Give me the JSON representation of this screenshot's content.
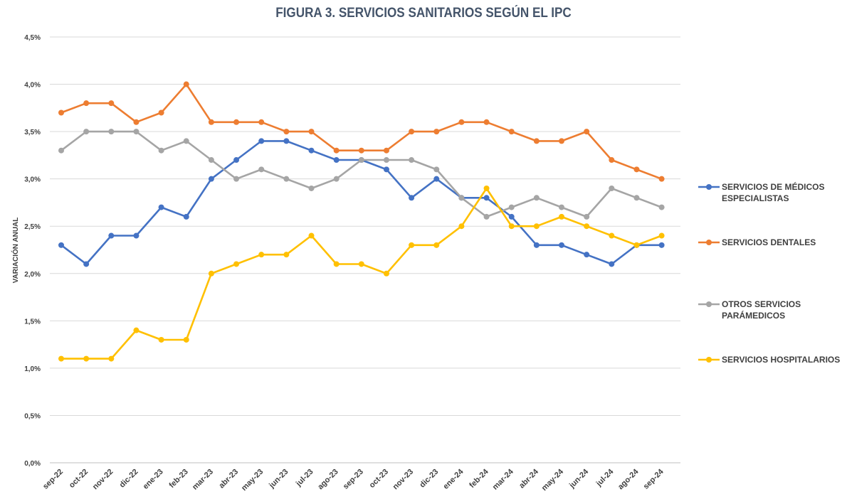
{
  "chart_data": {
    "type": "line",
    "title": "FIGURA 3. SERVICIOS SANITARIOS SEGÚN EL IPC",
    "ylabel": "VARIACIÓN ANUAL",
    "xlabel": "",
    "ylim": [
      0,
      4.5
    ],
    "y_ticks": [
      {
        "value": 0.0,
        "label": "0,0%"
      },
      {
        "value": 0.5,
        "label": "0,5%"
      },
      {
        "value": 1.0,
        "label": "1,0%"
      },
      {
        "value": 1.5,
        "label": "1,5%"
      },
      {
        "value": 2.0,
        "label": "2,0%"
      },
      {
        "value": 2.5,
        "label": "2,5%"
      },
      {
        "value": 3.0,
        "label": "3,0%"
      },
      {
        "value": 3.5,
        "label": "3,5%"
      },
      {
        "value": 4.0,
        "label": "4,0%"
      },
      {
        "value": 4.5,
        "label": "4,5%"
      }
    ],
    "categories": [
      "sep-22",
      "oct-22",
      "nov-22",
      "dic-22",
      "ene-23",
      "feb-23",
      "mar-23",
      "abr-23",
      "may-23",
      "jun-23",
      "jul-23",
      "ago-23",
      "sep-23",
      "oct-23",
      "nov-23",
      "dic-23",
      "ene-24",
      "feb-24",
      "mar-24",
      "abr-24",
      "may-24",
      "jun-24",
      "jul-24",
      "ago-24",
      "sep-24"
    ],
    "grid": true,
    "legend_position": "right",
    "series": [
      {
        "name": "SERVICIOS DE MÉDICOS ESPECIALISTAS",
        "legend_lines": [
          "SERVICIOS DE MÉDICOS",
          "ESPECIALISTAS"
        ],
        "color": "#4472c4",
        "values": [
          2.3,
          2.1,
          2.4,
          2.4,
          2.7,
          2.6,
          3.0,
          3.2,
          3.4,
          3.4,
          3.3,
          3.2,
          3.2,
          3.1,
          2.8,
          3.0,
          2.8,
          2.8,
          2.6,
          2.3,
          2.3,
          2.2,
          2.1,
          2.3,
          2.3
        ]
      },
      {
        "name": "SERVICIOS DENTALES",
        "legend_lines": [
          "SERVICIOS DENTALES"
        ],
        "color": "#ed7d31",
        "values": [
          3.7,
          3.8,
          3.8,
          3.6,
          3.7,
          4.0,
          3.6,
          3.6,
          3.6,
          3.5,
          3.5,
          3.3,
          3.3,
          3.3,
          3.5,
          3.5,
          3.6,
          3.6,
          3.5,
          3.4,
          3.4,
          3.5,
          3.2,
          3.1,
          3.0
        ]
      },
      {
        "name": "OTROS SERVICIOS PARÁMEDICOS",
        "legend_lines": [
          "OTROS SERVICIOS",
          "PARÁMEDICOS"
        ],
        "color": "#a5a5a5",
        "values": [
          3.3,
          3.5,
          3.5,
          3.5,
          3.3,
          3.4,
          3.2,
          3.0,
          3.1,
          3.0,
          2.9,
          3.0,
          3.2,
          3.2,
          3.2,
          3.1,
          2.8,
          2.6,
          2.7,
          2.8,
          2.7,
          2.6,
          2.9,
          2.8,
          2.7
        ]
      },
      {
        "name": "SERVICIOS HOSPITALARIOS",
        "legend_lines": [
          "SERVICIOS HOSPITALARIOS"
        ],
        "color": "#ffc000",
        "values": [
          1.1,
          1.1,
          1.1,
          1.4,
          1.3,
          1.3,
          2.0,
          2.1,
          2.2,
          2.2,
          2.4,
          2.1,
          2.1,
          2.0,
          2.3,
          2.3,
          2.5,
          2.9,
          2.5,
          2.5,
          2.6,
          2.5,
          2.4,
          2.3,
          2.4
        ]
      }
    ]
  }
}
